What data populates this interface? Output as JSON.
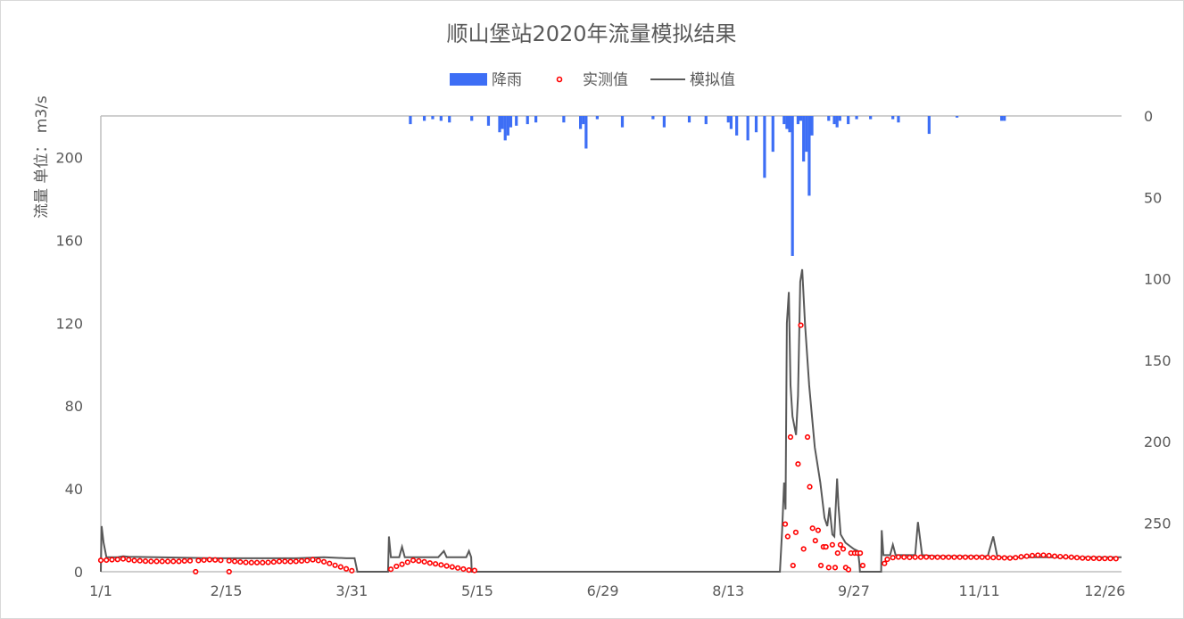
{
  "chart_data": {
    "type": "line",
    "title": "顺山堡站2020年流量模拟结果",
    "ylabel": "流量 单位： m3/s",
    "xlabel": "",
    "x_ticks": [
      "1/1",
      "2/15",
      "3/31",
      "5/15",
      "6/29",
      "8/13",
      "9/27",
      "11/11",
      "12/26"
    ],
    "x_tick_days": [
      0,
      45,
      90,
      135,
      180,
      225,
      270,
      315,
      360
    ],
    "xlim_days": [
      0,
      366
    ],
    "ylim": [
      0,
      220
    ],
    "y_ticks": [
      0,
      40,
      80,
      120,
      160,
      200
    ],
    "y2lim": [
      280,
      0
    ],
    "y2_ticks": [
      0,
      50,
      100,
      150,
      200,
      250
    ],
    "y2_reversed": true,
    "grid": false,
    "legend_position": "top",
    "colors": {
      "rain": "#3d6ef5",
      "observed": "#ff0000",
      "simulated": "#595959",
      "axis": "#bfbfbf",
      "text": "#595959"
    },
    "series": [
      {
        "name": "降雨",
        "type": "bar",
        "axis": "right",
        "points": [
          [
            111,
            5
          ],
          [
            116,
            3
          ],
          [
            119,
            2
          ],
          [
            122,
            3
          ],
          [
            125,
            4
          ],
          [
            133,
            3
          ],
          [
            139,
            6
          ],
          [
            143,
            10
          ],
          [
            144,
            8
          ],
          [
            145,
            15
          ],
          [
            146,
            12
          ],
          [
            147,
            7
          ],
          [
            149,
            6
          ],
          [
            153,
            5
          ],
          [
            156,
            4
          ],
          [
            166,
            4
          ],
          [
            172,
            8
          ],
          [
            173,
            5
          ],
          [
            174,
            20
          ],
          [
            178,
            2
          ],
          [
            187,
            7
          ],
          [
            198,
            2
          ],
          [
            202,
            7
          ],
          [
            211,
            4
          ],
          [
            217,
            5
          ],
          [
            225,
            4
          ],
          [
            226,
            8
          ],
          [
            228,
            12
          ],
          [
            232,
            15
          ],
          [
            235,
            10
          ],
          [
            238,
            38
          ],
          [
            241,
            22
          ],
          [
            245,
            5
          ],
          [
            246,
            8
          ],
          [
            247,
            10
          ],
          [
            248,
            86
          ],
          [
            250,
            5
          ],
          [
            251,
            3
          ],
          [
            252,
            28
          ],
          [
            253,
            22
          ],
          [
            254,
            49
          ],
          [
            255,
            12
          ],
          [
            261,
            3
          ],
          [
            263,
            5
          ],
          [
            264,
            7
          ],
          [
            265,
            3
          ],
          [
            268,
            5
          ],
          [
            271,
            2
          ],
          [
            276,
            2
          ],
          [
            284,
            2
          ],
          [
            286,
            4
          ],
          [
            297,
            11
          ],
          [
            307,
            1
          ],
          [
            323,
            3
          ],
          [
            324,
            3
          ]
        ]
      },
      {
        "name": "实测值",
        "type": "scatter",
        "axis": "left",
        "points": [
          [
            0,
            5.5
          ],
          [
            2,
            5.6
          ],
          [
            4,
            5.8
          ],
          [
            6,
            5.9
          ],
          [
            8,
            6.2
          ],
          [
            10,
            5.8
          ],
          [
            12,
            5.4
          ],
          [
            14,
            5.3
          ],
          [
            16,
            5.1
          ],
          [
            18,
            5
          ],
          [
            20,
            5
          ],
          [
            22,
            5
          ],
          [
            24,
            5
          ],
          [
            26,
            5
          ],
          [
            28,
            5
          ],
          [
            30,
            5.2
          ],
          [
            32,
            5.3
          ],
          [
            34,
            0
          ],
          [
            35,
            5.4
          ],
          [
            37,
            5.6
          ],
          [
            39,
            5.8
          ],
          [
            41,
            5.7
          ],
          [
            43,
            5.5
          ],
          [
            46,
            0
          ],
          [
            46,
            5.3
          ],
          [
            48,
            5
          ],
          [
            50,
            4.7
          ],
          [
            52,
            4.5
          ],
          [
            54,
            4.4
          ],
          [
            56,
            4.4
          ],
          [
            58,
            4.4
          ],
          [
            60,
            4.5
          ],
          [
            62,
            4.7
          ],
          [
            64,
            5
          ],
          [
            66,
            5
          ],
          [
            68,
            4.9
          ],
          [
            70,
            5
          ],
          [
            72,
            5.2
          ],
          [
            74,
            5.4
          ],
          [
            76,
            5.8
          ],
          [
            78,
            5.4
          ],
          [
            80,
            4.8
          ],
          [
            82,
            4
          ],
          [
            84,
            3.1
          ],
          [
            86,
            2.3
          ],
          [
            88,
            1.4
          ],
          [
            90,
            0.5
          ],
          [
            104,
            1.2
          ],
          [
            106,
            2.6
          ],
          [
            108,
            3.6
          ],
          [
            110,
            4.6
          ],
          [
            112,
            5.5
          ],
          [
            114,
            5.2
          ],
          [
            116,
            4.8
          ],
          [
            118,
            4.2
          ],
          [
            120,
            3.8
          ],
          [
            122,
            3.3
          ],
          [
            124,
            2.8
          ],
          [
            126,
            2.3
          ],
          [
            128,
            1.8
          ],
          [
            130,
            1.3
          ],
          [
            132,
            0.8
          ],
          [
            134,
            0.6
          ],
          [
            245.4,
            23
          ],
          [
            246.3,
            17
          ],
          [
            247.3,
            65
          ],
          [
            248.2,
            3
          ],
          [
            249.2,
            19
          ],
          [
            250,
            52
          ],
          [
            251,
            119
          ],
          [
            252,
            11
          ],
          [
            253.4,
            65
          ],
          [
            254.2,
            41
          ],
          [
            255.2,
            21
          ],
          [
            256.2,
            15
          ],
          [
            257.2,
            20
          ],
          [
            258.2,
            3
          ],
          [
            259.1,
            12
          ],
          [
            260,
            12
          ],
          [
            261,
            2
          ],
          [
            262.3,
            13
          ],
          [
            263.3,
            2
          ],
          [
            264.2,
            9
          ],
          [
            265.2,
            13
          ],
          [
            266.2,
            11
          ],
          [
            267.1,
            2
          ],
          [
            268.1,
            1
          ],
          [
            269,
            9
          ],
          [
            270.3,
            9
          ],
          [
            271.3,
            9
          ],
          [
            272.3,
            9
          ],
          [
            273.2,
            3
          ],
          [
            281,
            4
          ],
          [
            282,
            6
          ],
          [
            284,
            6.8
          ],
          [
            286,
            7.1
          ],
          [
            288,
            7
          ],
          [
            290,
            6.9
          ],
          [
            292,
            7
          ],
          [
            294,
            7
          ],
          [
            296,
            7.1
          ],
          [
            298,
            7
          ],
          [
            300,
            7
          ],
          [
            302,
            7
          ],
          [
            304,
            7
          ],
          [
            306,
            7
          ],
          [
            308,
            7
          ],
          [
            310,
            7
          ],
          [
            312,
            7
          ],
          [
            314,
            7
          ],
          [
            316,
            7
          ],
          [
            318,
            6.9
          ],
          [
            320,
            6.8
          ],
          [
            322,
            6.8
          ],
          [
            324,
            6.7
          ],
          [
            326,
            6.6
          ],
          [
            328,
            6.8
          ],
          [
            330,
            7.2
          ],
          [
            332,
            7.5
          ],
          [
            334,
            7.8
          ],
          [
            336,
            8
          ],
          [
            338,
            8
          ],
          [
            340,
            7.8
          ],
          [
            342,
            7.5
          ],
          [
            344,
            7.3
          ],
          [
            346,
            7.2
          ],
          [
            348,
            7
          ],
          [
            350,
            6.8
          ],
          [
            352,
            6.6
          ],
          [
            354,
            6.5
          ],
          [
            356,
            6.5
          ],
          [
            358,
            6.4
          ],
          [
            360,
            6.4
          ],
          [
            362,
            6.4
          ],
          [
            364,
            6.3
          ]
        ]
      },
      {
        "name": "模拟值",
        "type": "line",
        "axis": "left",
        "points": [
          [
            0,
            0
          ],
          [
            0.3,
            22
          ],
          [
            1,
            14
          ],
          [
            2,
            7
          ],
          [
            6,
            7
          ],
          [
            8,
            7.5
          ],
          [
            10,
            7.2
          ],
          [
            20,
            7
          ],
          [
            40,
            6.5
          ],
          [
            60,
            6.5
          ],
          [
            70,
            6.5
          ],
          [
            80,
            7
          ],
          [
            88,
            6.5
          ],
          [
            91,
            6.5
          ],
          [
            92,
            0
          ],
          [
            103,
            0
          ],
          [
            103.3,
            17
          ],
          [
            104,
            7
          ],
          [
            107,
            7
          ],
          [
            108,
            12
          ],
          [
            109,
            7
          ],
          [
            115,
            7
          ],
          [
            119,
            7
          ],
          [
            121,
            7
          ],
          [
            123,
            10
          ],
          [
            124,
            7
          ],
          [
            128,
            7
          ],
          [
            131,
            7
          ],
          [
            132,
            10
          ],
          [
            132.8,
            7
          ],
          [
            133,
            0
          ],
          [
            243.5,
            0
          ],
          [
            244.3,
            20
          ],
          [
            245,
            43
          ],
          [
            245.5,
            30
          ],
          [
            246,
            120
          ],
          [
            246.7,
            135
          ],
          [
            247.3,
            90
          ],
          [
            248,
            75
          ],
          [
            249.3,
            66
          ],
          [
            250,
            85
          ],
          [
            250.8,
            140
          ],
          [
            251.5,
            146
          ],
          [
            252.5,
            120
          ],
          [
            254,
            90
          ],
          [
            256,
            60
          ],
          [
            258,
            43
          ],
          [
            259.5,
            26
          ],
          [
            260.5,
            22
          ],
          [
            261.3,
            31
          ],
          [
            262.3,
            18
          ],
          [
            263,
            17
          ],
          [
            264,
            45
          ],
          [
            264.5,
            32
          ],
          [
            265.3,
            18
          ],
          [
            267,
            14
          ],
          [
            270,
            11
          ],
          [
            271.5,
            10
          ],
          [
            272,
            4
          ],
          [
            272.2,
            0
          ],
          [
            279.8,
            0
          ],
          [
            280,
            20
          ],
          [
            280.6,
            8
          ],
          [
            283,
            8
          ],
          [
            284,
            13
          ],
          [
            285,
            8
          ],
          [
            292,
            8
          ],
          [
            293,
            24
          ],
          [
            294.5,
            8
          ],
          [
            300,
            7.5
          ],
          [
            318,
            7.5
          ],
          [
            320,
            17
          ],
          [
            321.5,
            7
          ],
          [
            340,
            7
          ],
          [
            366,
            7
          ]
        ]
      }
    ]
  }
}
